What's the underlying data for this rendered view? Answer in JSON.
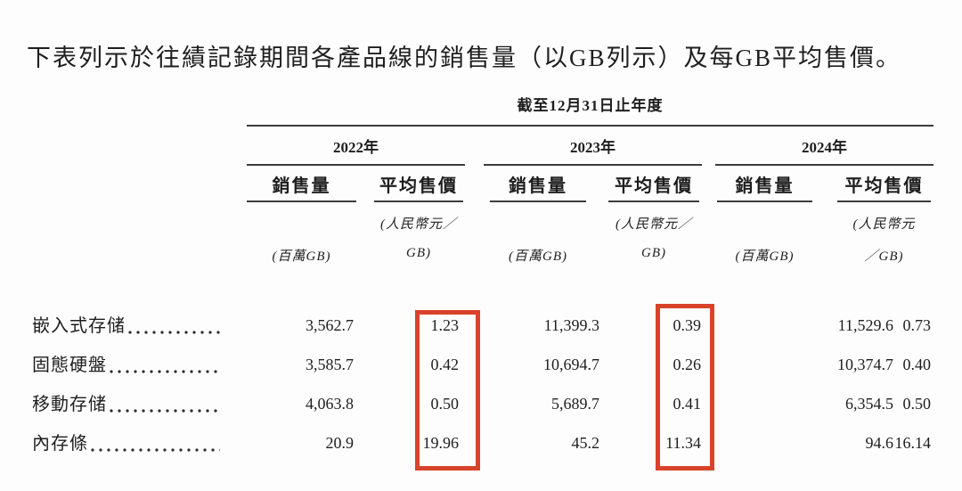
{
  "title": "下表列示於往績記錄期間各產品線的銷售量（以GB列示）及每GB平均售價。",
  "table": {
    "period_header": "截至12月31日止年度",
    "year_groups": [
      {
        "year": "2022年",
        "col_volume": "銷售量",
        "col_price": "平均售價",
        "volume_unit": "(百萬GB)",
        "price_unit_line1": "(人民幣元／",
        "price_unit_line2": "GB)"
      },
      {
        "year": "2023年",
        "col_volume": "銷售量",
        "col_price": "平均售價",
        "volume_unit": "(百萬GB)",
        "price_unit_line1": "(人民幣元／",
        "price_unit_line2": "GB)"
      },
      {
        "year": "2024年",
        "col_volume": "銷售量",
        "col_price": "平均售價",
        "volume_unit": "(百萬GB)",
        "price_unit_line1": "(人民幣元",
        "price_unit_line2": "／GB)"
      }
    ],
    "rows": [
      {
        "label": "嵌入式存储",
        "values": [
          "3,562.7",
          "1.23",
          "11,399.3",
          "0.39",
          "11,529.6",
          "0.73"
        ]
      },
      {
        "label": "固態硬盤",
        "values": [
          "3,585.7",
          "0.42",
          "10,694.7",
          "0.26",
          "10,374.7",
          "0.40"
        ]
      },
      {
        "label": "移動存储",
        "values": [
          "4,063.8",
          "0.50",
          "5,689.7",
          "0.41",
          "6,354.5",
          "0.50"
        ]
      },
      {
        "label": "內存條",
        "values": [
          "20.9",
          "19.96",
          "45.2",
          "11.34",
          "94.6",
          "16.14"
        ]
      }
    ],
    "highlight": {
      "color": "#d8432a",
      "highlighted_columns": [
        "2022年 平均售價",
        "2023年 平均售價"
      ]
    }
  }
}
